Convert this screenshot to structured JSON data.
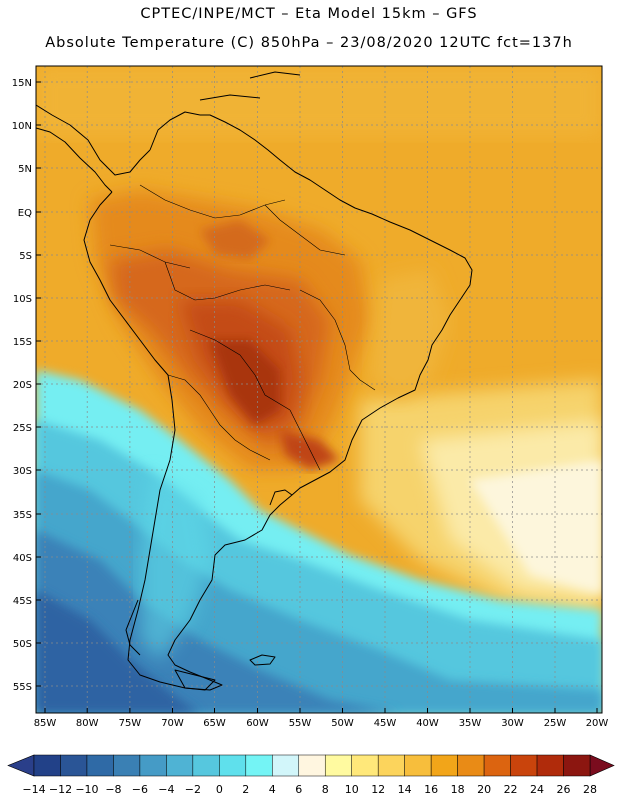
{
  "header": {
    "title_line1": "CPTEC/INPE/MCT –  Eta Model 15km – GFS",
    "title_line2": "Absolute Temperature (C) 850hPa – 23/08/2020 12UTC fct=137h"
  },
  "map": {
    "lat_labels": [
      "15N",
      "10N",
      "5N",
      "EQ",
      "5S",
      "10S",
      "15S",
      "20S",
      "25S",
      "30S",
      "35S",
      "40S",
      "45S",
      "50S",
      "55S"
    ],
    "lon_labels": [
      "85W",
      "80W",
      "75W",
      "70W",
      "65W",
      "60W",
      "55W",
      "50W",
      "45W",
      "40W",
      "35W",
      "30W",
      "25W",
      "20W"
    ]
  },
  "colorbar": {
    "tick_labels": [
      "-14",
      "-12",
      "-10",
      "-8",
      "-6",
      "-4",
      "-2",
      "0",
      "2",
      "4",
      "6",
      "8",
      "10",
      "12",
      "14",
      "16",
      "18",
      "20",
      "22",
      "24",
      "26",
      "28"
    ],
    "under_color": "#2a3f8a",
    "over_color": "#7a0c1e",
    "bin_colors": [
      "#224188",
      "#2a5596",
      "#2f6aa6",
      "#3a80b4",
      "#459bc6",
      "#4fb3d4",
      "#56c7de",
      "#5fe0ec",
      "#74f4f5",
      "#d2f6fa",
      "#fff6e0",
      "#fffaa0",
      "#ffe87a",
      "#fcd45c",
      "#f7be3c",
      "#f2a519",
      "#e98b16",
      "#dc6410",
      "#c9440c",
      "#b02b0b",
      "#8c1610"
    ]
  },
  "palette": {
    "ocean_sw": "#2d5fa0",
    "ocean_mid": "#4fb8d8",
    "cyan": "#6ff0f2",
    "pale": "#fdf5dc",
    "yellow": "#f6d060",
    "orange": "#eea52a",
    "dark_orange": "#df7f1c",
    "hot": "#cf5a12",
    "hottest": "#a93410",
    "grid": "#8a8a8a",
    "coast": "#000000"
  }
}
